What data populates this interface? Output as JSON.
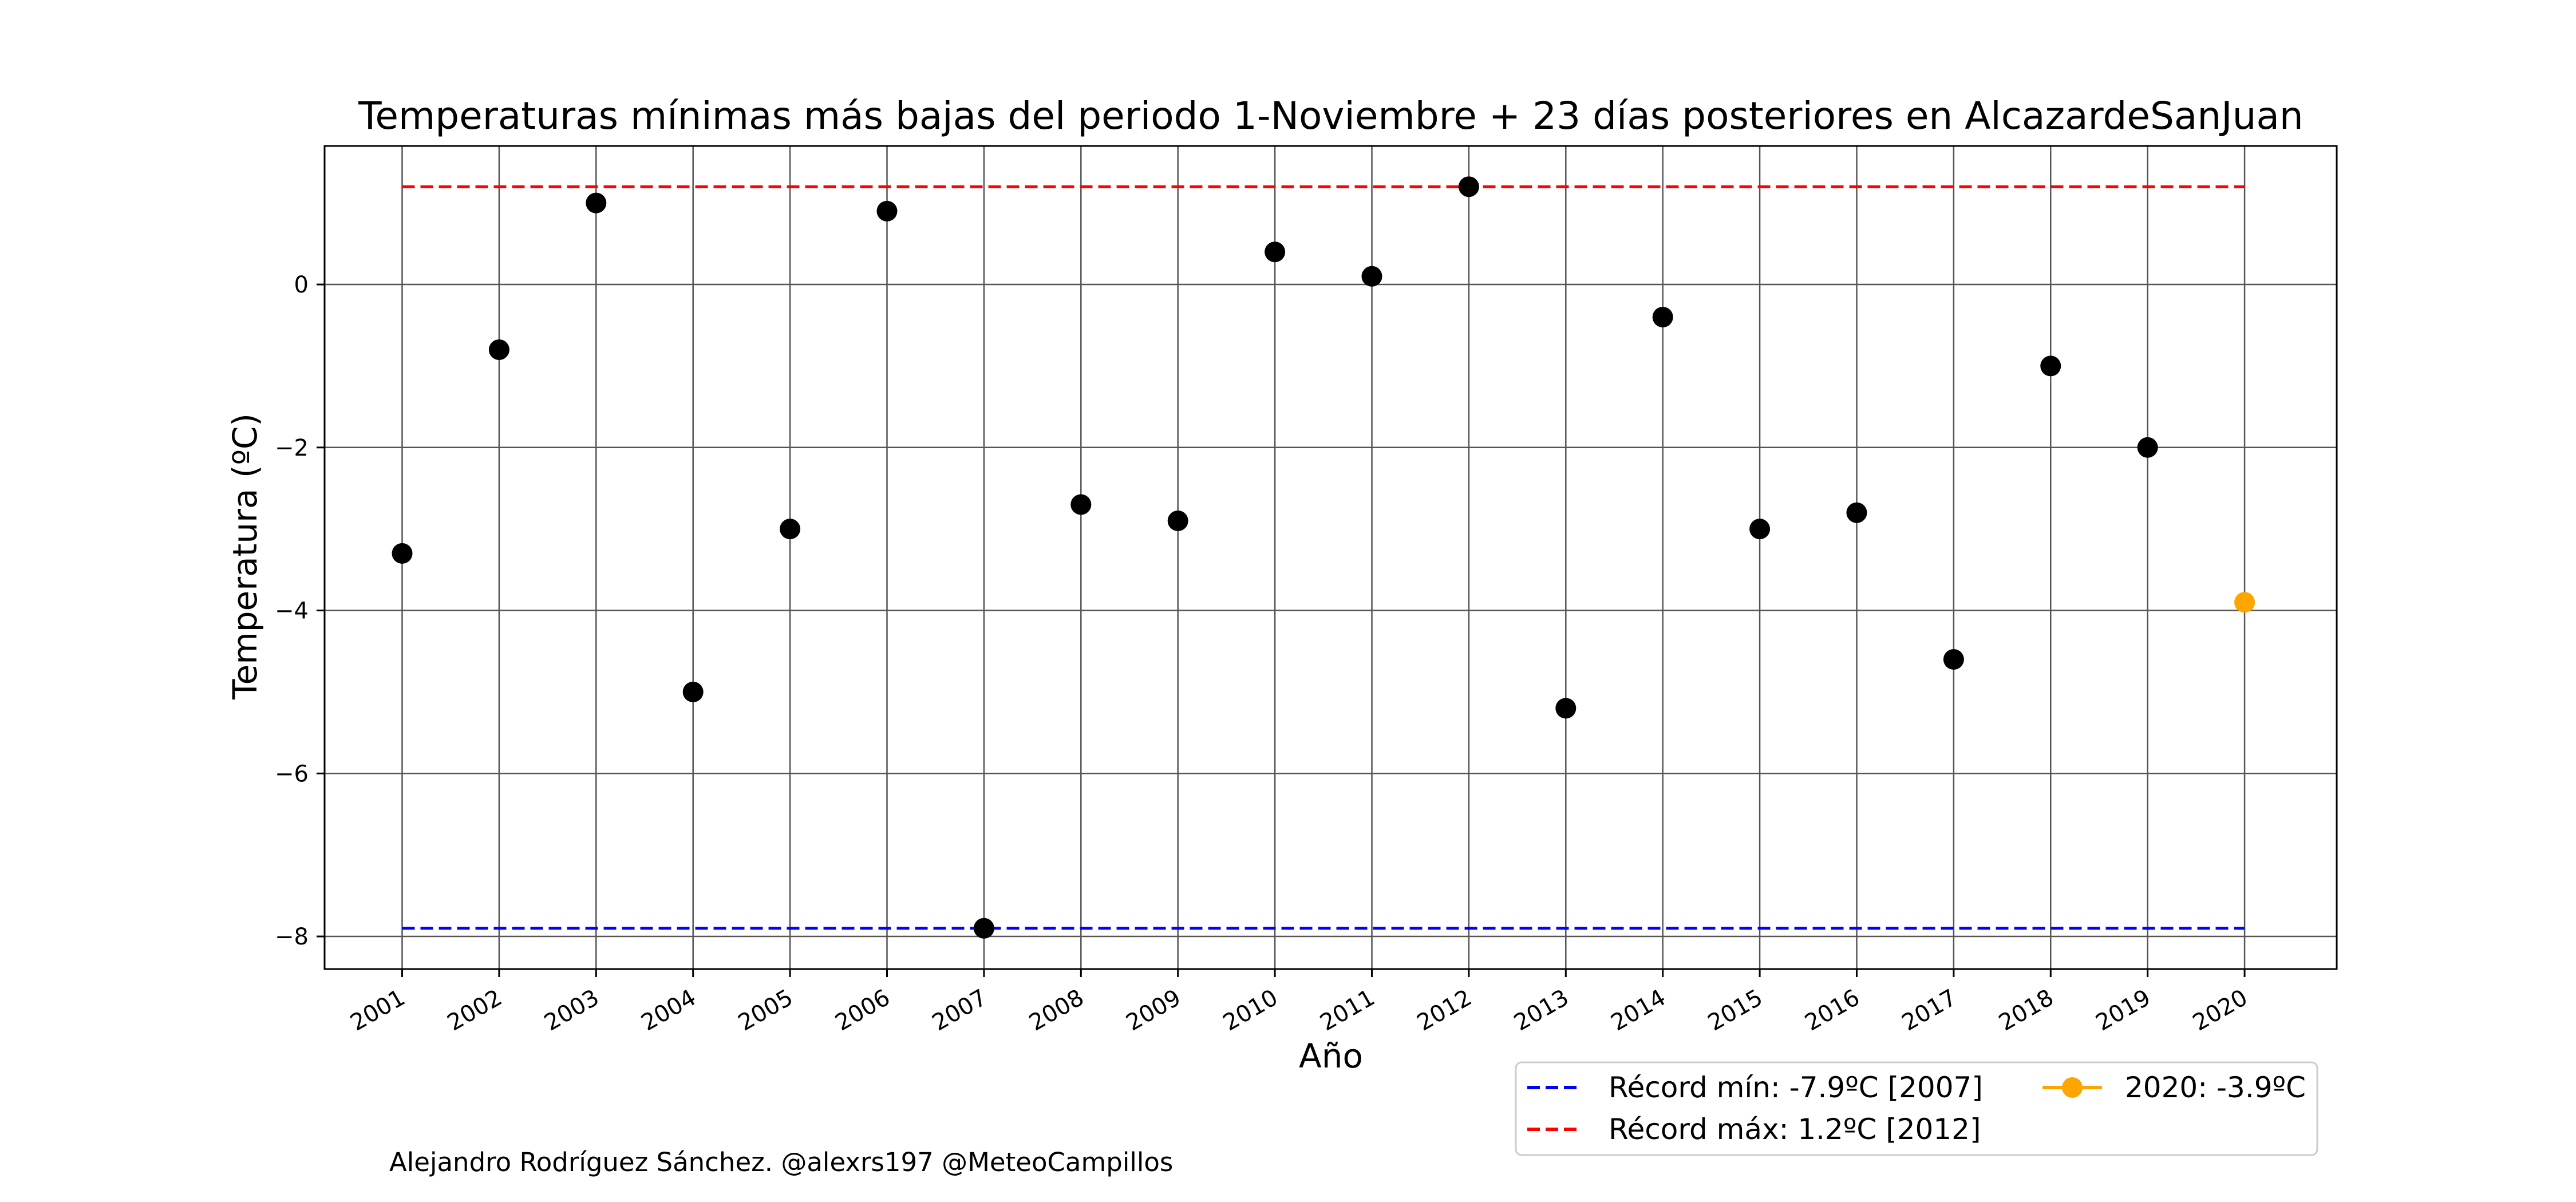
{
  "chart_data": {
    "type": "scatter",
    "title": "Temperaturas mínimas más bajas del periodo 1-Noviembre + 23 días posteriores en AlcazardeSanJuan",
    "xlabel": "Año",
    "ylabel": "Temperatura (ºC)",
    "x": [
      2001,
      2002,
      2003,
      2004,
      2005,
      2006,
      2007,
      2008,
      2009,
      2010,
      2011,
      2012,
      2013,
      2014,
      2015,
      2016,
      2017,
      2018,
      2019,
      2020
    ],
    "x_tick_labels": [
      "2001",
      "2002",
      "2003",
      "2004",
      "2005",
      "2006",
      "2007",
      "2008",
      "2009",
      "2010",
      "2011",
      "2012",
      "2013",
      "2014",
      "2015",
      "2016",
      "2017",
      "2018",
      "2019",
      "2020"
    ],
    "y_ticks": [
      0,
      -2,
      -4,
      -6,
      -8
    ],
    "y_tick_labels": [
      "0",
      "−2",
      "−4",
      "−6",
      "−8"
    ],
    "ylim": [
      -8.4,
      1.7
    ],
    "xlim": [
      2000.2,
      2020.95
    ],
    "grid": true,
    "series": [
      {
        "values": [
          -3.3,
          -0.8,
          1.0,
          -5.0,
          -3.0,
          0.9,
          -7.9,
          -2.7,
          -2.9,
          0.4,
          0.1,
          1.2,
          -5.2,
          -0.4,
          -3.0,
          -2.8,
          -4.6,
          -1.0,
          -2.0
        ],
        "color": "#000000"
      },
      {
        "name": "2020: -3.9ºC",
        "x": [
          2020
        ],
        "values": [
          -3.9
        ],
        "color": "#ffa500"
      }
    ],
    "reference_lines": [
      {
        "name": "Récord mín: -7.9ºC [2007]",
        "value": -7.9,
        "color": "#0000ff",
        "style": "dashed"
      },
      {
        "name": "Récord máx: 1.2ºC [2012]",
        "value": 1.2,
        "color": "#ff0000",
        "style": "dashed"
      }
    ],
    "legend_placement": "below-right"
  },
  "credit": "Alejandro Rodríguez Sánchez. @alexrs197 @MeteoCampillos"
}
